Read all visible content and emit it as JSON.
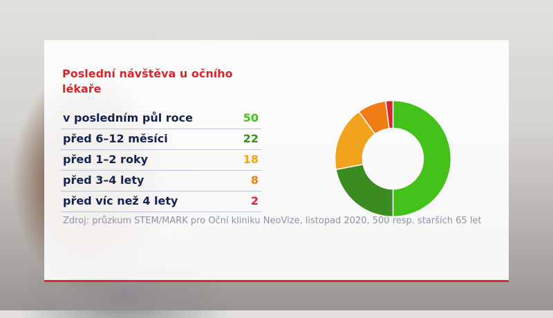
{
  "chart_data": {
    "type": "pie",
    "title": "Poslední návštěva u očního lékaře",
    "categories": [
      "v posledním půl roce",
      "před 6–12 měsíci",
      "před 1–2 roky",
      "před 3–4 lety",
      "před víc než 4 lety"
    ],
    "values": [
      50,
      22,
      18,
      8,
      2
    ],
    "value_labels": [
      "50",
      "22",
      "18",
      "8",
      "2"
    ],
    "colors": [
      "#44c21a",
      "#3b8c20",
      "#f2a31d",
      "#f07d13",
      "#d7262d"
    ],
    "style": "donut"
  },
  "source": "Zdroj: průzkum STEM/MARK pro Oční kliniku NeoVize, listopad 2020, 500 resp. starších 65 let",
  "colors": {
    "title": "#d7262d",
    "label": "#14224f",
    "accent_line": "#e0262e"
  }
}
